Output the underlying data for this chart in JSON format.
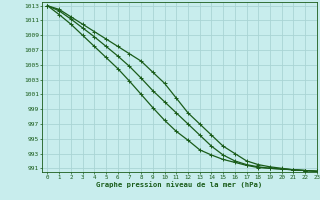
{
  "xlabel": "Graphe pression niveau de la mer (hPa)",
  "xlim": [
    -0.5,
    23
  ],
  "ylim": [
    990.5,
    1013.5
  ],
  "yticks": [
    991,
    993,
    995,
    997,
    999,
    1001,
    1003,
    1005,
    1007,
    1009,
    1011,
    1013
  ],
  "xticks": [
    0,
    1,
    2,
    3,
    4,
    5,
    6,
    7,
    8,
    9,
    10,
    11,
    12,
    13,
    14,
    15,
    16,
    17,
    18,
    19,
    20,
    21,
    22,
    23
  ],
  "background_color": "#c8eded",
  "grid_color": "#aad4d4",
  "line_color": "#1a5c1a",
  "line_width": 0.9,
  "marker": "P",
  "marker_size": 3,
  "series": [
    [
      1013,
      1012.5,
      1011.5,
      1010.5,
      1009.5,
      1008.5,
      1007.5,
      1006.5,
      1005.5,
      1004.0,
      1002.5,
      1000.5,
      998.5,
      997.0,
      995.5,
      994.0,
      993.0,
      992.0,
      991.5,
      991.2,
      991.0,
      990.8,
      990.7,
      990.6
    ],
    [
      1013,
      1012.3,
      1011.2,
      1010.0,
      1008.8,
      1007.5,
      1006.2,
      1004.8,
      1003.2,
      1001.5,
      1000.0,
      998.5,
      997.0,
      995.5,
      994.0,
      992.8,
      992.0,
      991.5,
      991.2,
      991.0,
      990.9,
      990.8,
      990.7,
      990.6
    ],
    [
      1013,
      1011.8,
      1010.5,
      1009.0,
      1007.5,
      1006.0,
      1004.5,
      1002.8,
      1001.0,
      999.2,
      997.5,
      996.0,
      994.8,
      993.5,
      992.8,
      992.2,
      991.8,
      991.4,
      991.1,
      991.0,
      990.9,
      990.8,
      990.7,
      990.6
    ]
  ]
}
